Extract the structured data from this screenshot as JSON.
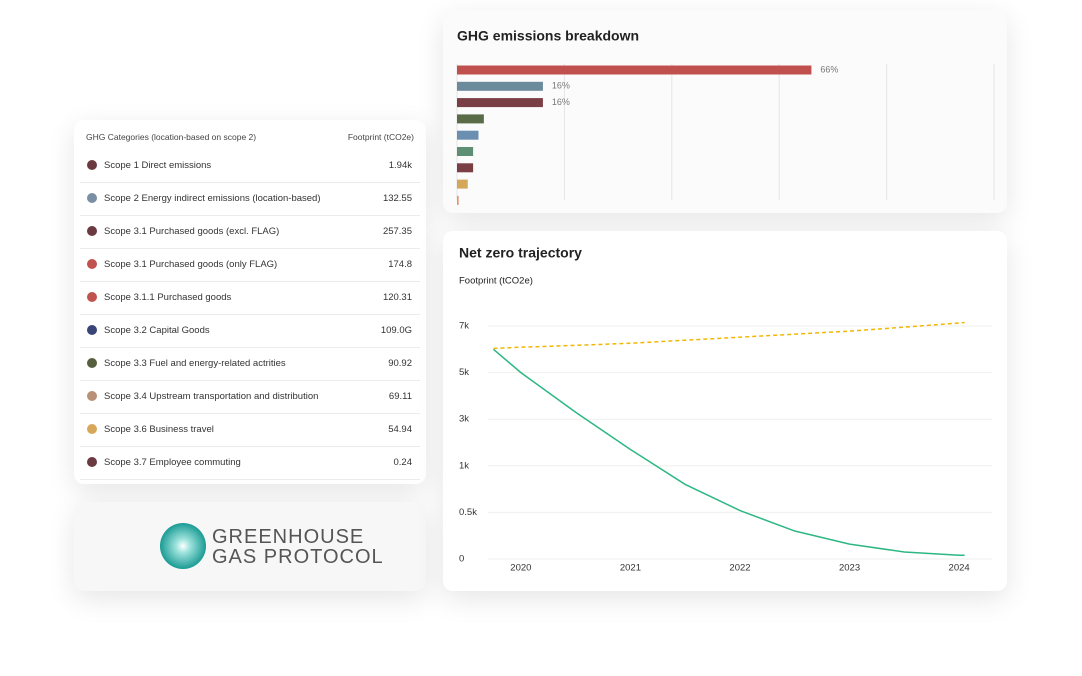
{
  "table": {
    "header": [
      "GHG Categories (location-based on scope 2)",
      "Footprint (tCO2e)"
    ],
    "rows": [
      {
        "color": "#6b3a41",
        "label": "Scope 1 Direct emissions",
        "value": "1.94k"
      },
      {
        "color": "#7a8fa3",
        "label": "Scope 2 Energy indirect emissions (location-based)",
        "value": "132.55"
      },
      {
        "color": "#6b3a41",
        "label": "Scope 3.1 Purchased goods (excl. FLAG)",
        "value": "257.35"
      },
      {
        "color": "#c0534f",
        "label": "Scope 3.1 Purchased goods (only FLAG)",
        "value": "174.8"
      },
      {
        "color": "#c0534f",
        "label": "Scope 3.1.1 Purchased goods",
        "value": "120.31"
      },
      {
        "color": "#3a4577",
        "label": "Scope 3.2 Capital Goods",
        "value": "109.0G"
      },
      {
        "color": "#56603f",
        "label": "Scope 3.3 Fuel and energy-related actrities",
        "value": "90.92"
      },
      {
        "color": "#b99176",
        "label": "Scope 3.4 Upstream transportation and distribution",
        "value": "69.11"
      },
      {
        "color": "#d8a75c",
        "label": "Scope 3.6 Business travel",
        "value": "54.94"
      },
      {
        "color": "#6b3a41",
        "label": "Scope 3.7 Employee commuting",
        "value": "0.24"
      }
    ]
  },
  "logo": {
    "lines": [
      "GREENHOUSE",
      "GAS PROTOCOL"
    ]
  },
  "chart_data": [
    {
      "type": "bar",
      "orientation": "horizontal",
      "title": "GHG emissions breakdown",
      "values": [
        66,
        16,
        16,
        5,
        4,
        3,
        3,
        2,
        0.3
      ],
      "value_labels": [
        "66%",
        "16%",
        "16%",
        null,
        null,
        null,
        null,
        null,
        null
      ],
      "colors": [
        "#c0504d",
        "#6b8a9c",
        "#7a3e45",
        "#5a6b47",
        "#6b8fb0",
        "#5e8f74",
        "#7a3e45",
        "#d4a85a",
        "#e8906a"
      ],
      "xlim": [
        0,
        100
      ],
      "grid": true
    },
    {
      "type": "line",
      "title": "Net zero trajectory",
      "y_label": "Footprint (tCO2e)",
      "x": [
        2019.75,
        2020,
        2020.5,
        2021,
        2021.5,
        2022,
        2022.5,
        2023,
        2023.5,
        2024,
        2024.05
      ],
      "series": [
        {
          "color": "#2db783",
          "values": [
            6000,
            5000,
            3300,
            1700,
            800,
            520,
            300,
            160,
            75,
            40,
            40
          ]
        },
        {
          "color": "#f2b705",
          "dashed": true,
          "values": [
            6040,
            6090,
            6170,
            6260,
            6390,
            6520,
            6650,
            6780,
            6950,
            7130,
            7150
          ]
        }
      ],
      "xlim": [
        2019.7,
        2024.3
      ],
      "xticks": [
        2020,
        2021,
        2022,
        2023,
        2024
      ],
      "ylim": [
        0,
        7000
      ],
      "yticks": [
        0,
        {
          "value": 500,
          "label": "0.5k"
        },
        {
          "value": 1000,
          "label": "1k"
        },
        {
          "value": 3000,
          "label": "3k"
        },
        {
          "value": 5000,
          "label": "5k"
        },
        {
          "value": 7000,
          "label": "7k"
        }
      ],
      "grid": true
    }
  ]
}
